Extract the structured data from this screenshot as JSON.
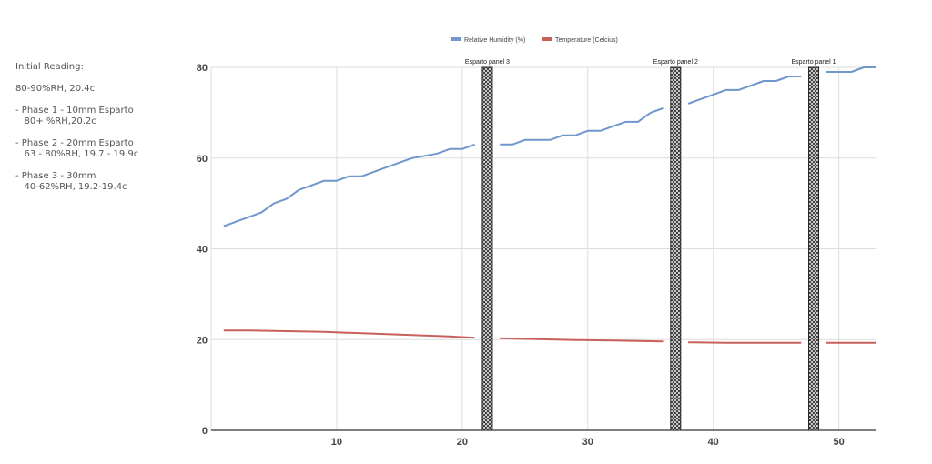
{
  "notes": {
    "lines": [
      "Initial Reading:",
      "",
      "80-90%RH, 20.4c",
      "",
      "- Phase 1 - 10mm Esparto",
      "   80+ %RH,20.2c",
      "",
      "- Phase 2 - 20mm Esparto",
      "   63 - 80%RH, 19.7 - 19.9c",
      "",
      "- Phase 3 - 30mm",
      "   40-62%RH, 19.2-19.4c"
    ]
  },
  "colors": {
    "humidity": "#6f97cb",
    "temperature": "#c9605c",
    "grid": "#dddddd",
    "axis": "#333333"
  },
  "chart_data": {
    "type": "line",
    "title": "",
    "xlabel": "",
    "ylabel": "",
    "xlim": [
      0,
      53
    ],
    "ylim": [
      0,
      80
    ],
    "x_ticks": [
      10,
      20,
      30,
      40,
      50
    ],
    "y_ticks": [
      0,
      20,
      40,
      60,
      80
    ],
    "legend_position": "top-center",
    "series": [
      {
        "name": "Relative Humidity (%)",
        "color": "#6f97cb",
        "segments": [
          [
            [
              1,
              45
            ],
            [
              2,
              46
            ],
            [
              3,
              47
            ],
            [
              4,
              48
            ],
            [
              5,
              50
            ],
            [
              6,
              51
            ],
            [
              7,
              53
            ],
            [
              8,
              54
            ],
            [
              9,
              55
            ],
            [
              10,
              55
            ],
            [
              11,
              56
            ],
            [
              12,
              56
            ],
            [
              13,
              57
            ],
            [
              14,
              58
            ],
            [
              15,
              59
            ],
            [
              16,
              60
            ],
            [
              17,
              60.5
            ],
            [
              18,
              61
            ],
            [
              19,
              62
            ],
            [
              20,
              62
            ],
            [
              21,
              63
            ]
          ],
          [
            [
              23,
              63
            ],
            [
              24,
              63
            ],
            [
              25,
              64
            ],
            [
              26,
              64
            ],
            [
              27,
              64
            ],
            [
              28,
              65
            ],
            [
              29,
              65
            ],
            [
              30,
              66
            ],
            [
              31,
              66
            ],
            [
              32,
              67
            ],
            [
              33,
              68
            ],
            [
              34,
              68
            ],
            [
              35,
              70
            ],
            [
              36,
              71
            ]
          ],
          [
            [
              38,
              72
            ],
            [
              39,
              73
            ],
            [
              40,
              74
            ],
            [
              41,
              75
            ],
            [
              42,
              75
            ],
            [
              43,
              76
            ],
            [
              44,
              77
            ],
            [
              45,
              77
            ],
            [
              46,
              78
            ],
            [
              47,
              78
            ]
          ],
          [
            [
              49,
              79
            ],
            [
              50,
              79
            ],
            [
              51,
              79
            ],
            [
              52,
              80
            ],
            [
              53,
              80
            ]
          ]
        ]
      },
      {
        "name": "Temperature (Celcius)",
        "color": "#c9605c",
        "segments": [
          [
            [
              1,
              22
            ],
            [
              3,
              22
            ],
            [
              5,
              21.9
            ],
            [
              7,
              21.8
            ],
            [
              9,
              21.7
            ],
            [
              11,
              21.5
            ],
            [
              13,
              21.3
            ],
            [
              15,
              21.1
            ],
            [
              17,
              20.9
            ],
            [
              19,
              20.7
            ],
            [
              21,
              20.4
            ]
          ],
          [
            [
              23,
              20.3
            ],
            [
              26,
              20.1
            ],
            [
              29,
              19.9
            ],
            [
              32,
              19.8
            ],
            [
              34,
              19.7
            ],
            [
              36,
              19.6
            ]
          ],
          [
            [
              38,
              19.4
            ],
            [
              41,
              19.3
            ],
            [
              44,
              19.3
            ],
            [
              47,
              19.3
            ]
          ],
          [
            [
              49,
              19.3
            ],
            [
              51,
              19.3
            ],
            [
              53,
              19.3
            ]
          ]
        ]
      }
    ],
    "annotations": [
      {
        "label": "Esparto panel 3",
        "x": 22
      },
      {
        "label": "Esparto panel 2",
        "x": 37
      },
      {
        "label": "Esparto panel 1",
        "x": 48
      }
    ]
  }
}
